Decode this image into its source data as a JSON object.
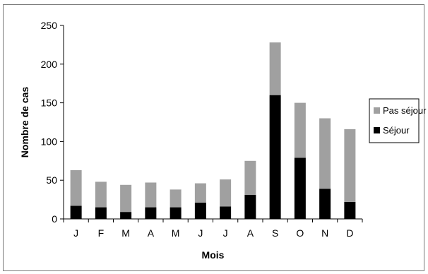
{
  "chart_data": {
    "type": "bar",
    "stacked": true,
    "categories": [
      "J",
      "F",
      "M",
      "A",
      "M",
      "J",
      "J",
      "A",
      "S",
      "O",
      "N",
      "D"
    ],
    "series": [
      {
        "name": "Séjour",
        "color": "#000000",
        "values": [
          17,
          15,
          9,
          15,
          15,
          21,
          16,
          31,
          160,
          79,
          39,
          22
        ]
      },
      {
        "name": "Pas séjour",
        "color": "#a0a0a0",
        "values": [
          46,
          33,
          35,
          32,
          23,
          25,
          35,
          44,
          68,
          71,
          91,
          94
        ]
      }
    ],
    "title": "",
    "xlabel": "Mois",
    "ylabel": "Nombre de cas",
    "ylim": [
      0,
      250
    ],
    "yticks": [
      0,
      50,
      100,
      150,
      200,
      250
    ],
    "legend_position": "right",
    "legend_order": [
      "Pas séjour",
      "Séjour"
    ],
    "grid": false
  }
}
